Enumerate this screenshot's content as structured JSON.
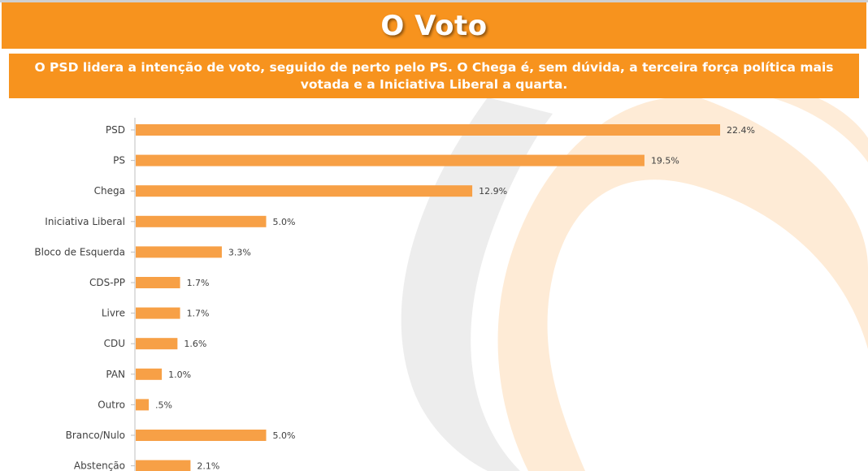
{
  "header": {
    "title": "O Voto",
    "subtitle": "O PSD lidera a intenção de voto, seguido de perto pelo PS. O Chega é, sem dúvida, a terceira força política mais votada e a Iniciativa Liberal a quarta."
  },
  "colors": {
    "accent": "#f7931e",
    "bar": "#f7a046",
    "watermark": "#fde3c7",
    "watermark_grey": "#e6e6e6"
  },
  "chart_data": {
    "type": "bar",
    "orientation": "horizontal",
    "categories": [
      "PSD",
      "PS",
      "Chega",
      "Iniciativa Liberal",
      "Bloco de Esquerda",
      "CDS-PP",
      "Livre",
      "CDU",
      "PAN",
      "Outro",
      "Branco/Nulo",
      "Abstenção"
    ],
    "values": [
      22.4,
      19.5,
      12.9,
      5.0,
      3.3,
      1.7,
      1.7,
      1.6,
      1.0,
      0.5,
      5.0,
      2.1
    ],
    "value_labels": [
      "22.4%",
      "19.5%",
      "12.9%",
      "5.0%",
      "3.3%",
      "1.7%",
      "1.7%",
      "1.6%",
      "1.0%",
      ".5%",
      "5.0%",
      "2.1%"
    ],
    "xlim": [
      0,
      25
    ],
    "grid": false,
    "legend": "none"
  }
}
